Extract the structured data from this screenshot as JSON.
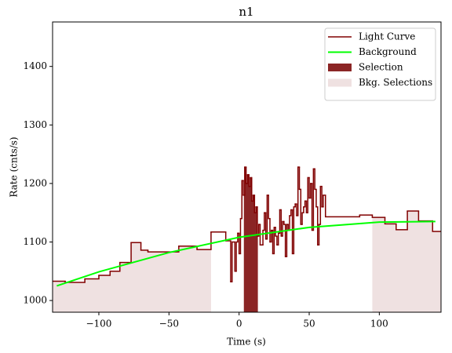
{
  "chart_data": {
    "type": "line",
    "title": "n1",
    "xlabel": "Time (s)",
    "ylabel": "Rate (cnts/s)",
    "xlim": [
      -133,
      144
    ],
    "ylim": [
      980,
      1476
    ],
    "xticks": [
      {
        "value": -100,
        "label": "−100"
      },
      {
        "value": -50,
        "label": "−50"
      },
      0,
      50,
      100
    ],
    "yticks": [
      1000,
      1100,
      1200,
      1300,
      1400
    ],
    "legend": "upper right",
    "series": [
      {
        "name": "Light Curve",
        "color": "#800000",
        "drawstyle": "steps-post",
        "x": [
          -133,
          -124,
          -110,
          -100,
          -92,
          -85,
          -77,
          -70,
          -65,
          -43,
          -30,
          -20,
          -9.5,
          -6,
          -5,
          -3,
          -2,
          -1,
          0,
          1,
          2,
          3,
          4,
          5,
          6,
          7,
          8,
          9,
          10,
          11,
          12,
          13,
          14,
          15,
          17,
          18,
          19,
          20,
          21,
          22,
          23,
          24,
          25,
          26,
          27,
          28,
          29,
          30,
          31,
          32,
          33,
          34,
          35,
          36,
          37,
          38,
          39,
          40,
          41,
          42,
          43,
          44,
          45,
          46,
          47,
          48,
          49,
          50,
          51,
          52,
          53,
          54,
          55,
          56,
          57,
          58,
          59,
          60,
          61.6,
          86,
          95,
          104,
          112,
          120,
          128,
          138
        ],
        "values": [
          1033,
          1031,
          1037,
          1043,
          1050,
          1065,
          1099,
          1086,
          1083,
          1093,
          1087,
          1117,
          1102,
          1032,
          1100,
          1050,
          1100,
          1115,
          1080,
          1140,
          1205,
          1180,
          1228,
          1200,
          1215,
          1195,
          1210,
          1170,
          1180,
          1150,
          1160,
          1110,
          1130,
          1095,
          1120,
          1150,
          1105,
          1180,
          1140,
          1100,
          1120,
          1080,
          1125,
          1110,
          1095,
          1115,
          1155,
          1110,
          1135,
          1130,
          1075,
          1130,
          1120,
          1145,
          1155,
          1080,
          1160,
          1165,
          1145,
          1228,
          1190,
          1130,
          1150,
          1160,
          1170,
          1150,
          1210,
          1175,
          1200,
          1120,
          1225,
          1190,
          1160,
          1095,
          1130,
          1195,
          1160,
          1180,
          1143,
          1146,
          1142,
          1131,
          1121,
          1153,
          1136,
          1118
        ]
      },
      {
        "name": "Background",
        "color": "#00ff00",
        "drawstyle": "default",
        "x": [
          -130,
          -100,
          -50,
          0,
          50,
          100,
          140
        ],
        "values": [
          1025,
          1049,
          1082,
          1108,
          1125,
          1134,
          1135
        ]
      }
    ],
    "selections": [
      {
        "name": "Selection",
        "color": "#8b2525",
        "ranges": [
          [
            3.4,
            13.4
          ]
        ]
      },
      {
        "name": "Bkg. Selections",
        "color": "#efe1e1",
        "ranges": [
          [
            -133,
            -20
          ],
          [
            95,
            144
          ]
        ]
      }
    ]
  }
}
